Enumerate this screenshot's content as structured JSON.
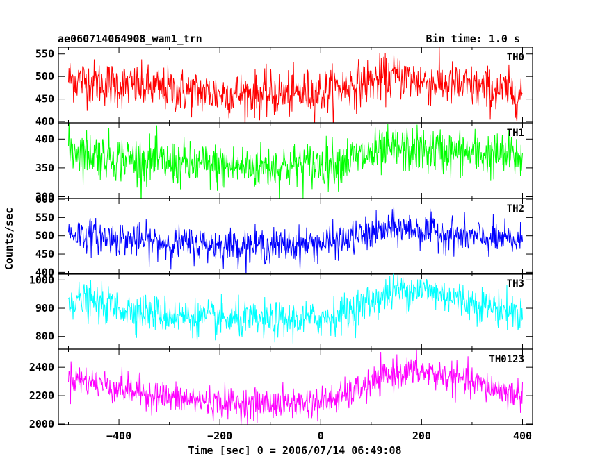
{
  "chart_data": {
    "type": "line",
    "title": "ae060714064908_wam1_trn",
    "subtitle": "Bin time: 1.0 s",
    "xlabel": "Time [sec] 0 = 2006/07/14 06:49:08",
    "ylabel": "Counts/sec",
    "xlim": [
      -520,
      420
    ],
    "x_ticks": [
      -400,
      -200,
      0,
      200,
      400
    ],
    "x_tick_labels": [
      "−400",
      "−200",
      "0",
      "200",
      "400"
    ],
    "x_range": [
      -500,
      400
    ],
    "grid": false,
    "panels": [
      {
        "name": "TH0",
        "color": "#ff0000",
        "ylim": [
          397,
          565
        ],
        "y_ticks": [
          400,
          450,
          500,
          550
        ],
        "y_tick_labels": [
          "400",
          "450",
          "500",
          "550"
        ],
        "trend": [
          [
            -500,
            495
          ],
          [
            -400,
            480
          ],
          [
            -300,
            470
          ],
          [
            -200,
            462
          ],
          [
            -100,
            460
          ],
          [
            0,
            465
          ],
          [
            100,
            490
          ],
          [
            150,
            500
          ],
          [
            200,
            490
          ],
          [
            300,
            475
          ],
          [
            400,
            462
          ]
        ],
        "noise": 25
      },
      {
        "name": "TH1",
        "color": "#00ff00",
        "ylim": [
          297,
          428
        ],
        "y_ticks": [
          300,
          350,
          400
        ],
        "y_tick_labels": [
          "300",
          "350",
          "400"
        ],
        "trend": [
          [
            -500,
            382
          ],
          [
            -400,
            368
          ],
          [
            -300,
            358
          ],
          [
            -200,
            352
          ],
          [
            -100,
            352
          ],
          [
            0,
            356
          ],
          [
            100,
            372
          ],
          [
            150,
            382
          ],
          [
            200,
            380
          ],
          [
            300,
            375
          ],
          [
            400,
            368
          ]
        ],
        "noise": 20
      },
      {
        "name": "TH2",
        "color": "#0000ff",
        "ylim": [
          395,
          602
        ],
        "y_ticks": [
          400,
          450,
          500,
          550,
          600
        ],
        "y_tick_labels": [
          "400",
          "450",
          "500",
          "550",
          "600"
        ],
        "trend": [
          [
            -500,
            508
          ],
          [
            -400,
            492
          ],
          [
            -300,
            480
          ],
          [
            -200,
            475
          ],
          [
            -100,
            473
          ],
          [
            0,
            478
          ],
          [
            50,
            490
          ],
          [
            100,
            505
          ],
          [
            150,
            522
          ],
          [
            200,
            515
          ],
          [
            300,
            495
          ],
          [
            400,
            485
          ]
        ],
        "noise": 23
      },
      {
        "name": "TH3",
        "color": "#00ffff",
        "ylim": [
          755,
          1023
        ],
        "y_ticks": [
          800,
          900,
          1000
        ],
        "y_tick_labels": [
          "800",
          "900",
          "1000"
        ],
        "trend": [
          [
            -500,
            935
          ],
          [
            -400,
            900
          ],
          [
            -300,
            875
          ],
          [
            -200,
            860
          ],
          [
            -100,
            855
          ],
          [
            0,
            862
          ],
          [
            50,
            885
          ],
          [
            100,
            925
          ],
          [
            150,
            962
          ],
          [
            200,
            968
          ],
          [
            300,
            920
          ],
          [
            400,
            878
          ]
        ],
        "noise": 32
      },
      {
        "name": "TH0123",
        "color": "#ff00ff",
        "ylim": [
          1995,
          2528
        ],
        "y_ticks": [
          2000,
          2200,
          2400
        ],
        "y_tick_labels": [
          "2000",
          "2200",
          "2400"
        ],
        "trend": [
          [
            -500,
            2330
          ],
          [
            -400,
            2255
          ],
          [
            -300,
            2185
          ],
          [
            -200,
            2150
          ],
          [
            -100,
            2140
          ],
          [
            0,
            2155
          ],
          [
            50,
            2200
          ],
          [
            100,
            2280
          ],
          [
            150,
            2365
          ],
          [
            200,
            2370
          ],
          [
            300,
            2290
          ],
          [
            400,
            2200
          ]
        ],
        "noise": 55
      }
    ]
  }
}
